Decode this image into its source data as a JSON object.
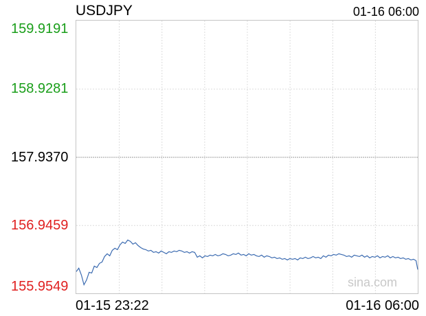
{
  "chart_data": {
    "type": "line",
    "title": "USDJPY",
    "last_time": "01-16 06:00",
    "watermark": "sina.com",
    "ylim": [
      155.9549,
      159.9191
    ],
    "y_ticks": [
      {
        "label": "159.9191",
        "value": 159.9191,
        "color": "#1a9e1a"
      },
      {
        "label": "158.9281",
        "value": 158.9281,
        "color": "#1a9e1a"
      },
      {
        "label": "157.9370",
        "value": 157.937,
        "color": "#000000"
      },
      {
        "label": "156.9459",
        "value": 156.9459,
        "color": "#e02020"
      },
      {
        "label": "155.9549",
        "value": 155.9549,
        "color": "#e02020"
      }
    ],
    "x_labels": {
      "start": "01-15 23:22",
      "end": "01-16 06:00"
    },
    "grid": true,
    "line_color": "#3a6ab0",
    "series": [
      {
        "x": [
          0,
          3,
          6,
          9,
          12,
          15,
          18,
          21,
          24,
          27,
          30,
          33,
          36,
          39,
          42,
          45,
          48,
          51,
          54,
          57,
          60,
          63,
          66,
          69,
          72,
          75,
          78,
          81,
          84,
          87,
          90,
          93,
          96,
          99,
          102,
          105,
          108,
          111,
          114,
          117,
          120,
          123,
          126,
          129,
          132,
          135,
          138,
          141,
          144,
          147,
          150,
          153,
          156,
          159,
          162,
          165,
          168,
          171,
          174,
          177,
          180,
          183,
          186,
          189,
          192,
          195,
          198,
          201,
          204,
          207,
          210,
          213,
          216,
          219,
          222,
          225,
          228,
          231,
          234,
          237,
          240,
          243,
          246,
          249,
          252,
          255,
          258,
          261,
          264,
          267,
          270,
          273,
          276,
          279,
          282,
          285,
          288,
          291,
          294,
          297,
          300,
          303,
          306,
          309,
          312,
          315,
          318,
          321,
          324,
          327,
          330,
          333,
          336,
          339,
          342,
          345,
          348,
          351,
          354,
          357,
          360,
          363,
          366,
          369,
          372,
          375,
          378,
          381,
          384,
          387,
          390,
          393,
          396,
          398
        ],
        "values": [
          156.27,
          156.32,
          156.22,
          156.08,
          156.15,
          156.26,
          156.25,
          156.35,
          156.33,
          156.39,
          156.41,
          156.49,
          156.53,
          156.5,
          156.58,
          156.61,
          156.59,
          156.66,
          156.7,
          156.68,
          156.73,
          156.71,
          156.67,
          156.69,
          156.65,
          156.62,
          156.6,
          156.59,
          156.57,
          156.58,
          156.55,
          156.56,
          156.54,
          156.57,
          156.55,
          156.53,
          156.56,
          156.55,
          156.57,
          156.56,
          156.58,
          156.57,
          156.55,
          156.56,
          156.54,
          156.56,
          156.55,
          156.48,
          156.5,
          156.47,
          156.5,
          156.49,
          156.51,
          156.5,
          156.52,
          156.5,
          156.51,
          156.53,
          156.52,
          156.5,
          156.51,
          156.53,
          156.52,
          156.54,
          156.51,
          156.52,
          156.5,
          156.53,
          156.51,
          156.52,
          156.5,
          156.49,
          156.51,
          156.48,
          156.5,
          156.49,
          156.47,
          156.48,
          156.46,
          156.47,
          156.45,
          156.46,
          156.44,
          156.46,
          156.45,
          156.46,
          156.44,
          156.47,
          156.46,
          156.48,
          156.46,
          156.47,
          156.49,
          156.47,
          156.48,
          156.46,
          156.5,
          156.48,
          156.51,
          156.5,
          156.52,
          156.51,
          156.53,
          156.52,
          156.51,
          156.49,
          156.5,
          156.48,
          156.51,
          156.5,
          156.49,
          156.51,
          156.48,
          156.5,
          156.47,
          156.49,
          156.48,
          156.5,
          156.47,
          156.49,
          156.48,
          156.5,
          156.47,
          156.49,
          156.47,
          156.48,
          156.46,
          156.47,
          156.45,
          156.46,
          156.44,
          156.45,
          156.43,
          156.3
        ]
      }
    ]
  }
}
